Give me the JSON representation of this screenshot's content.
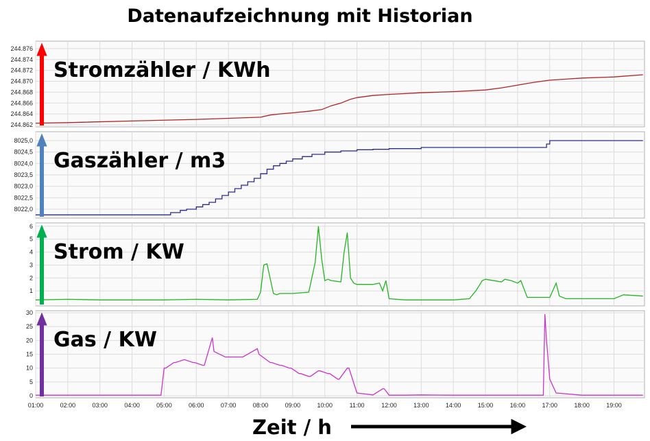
{
  "title": "Datenaufzeichnung mit Historian",
  "x_axis_label": "Zeit / h",
  "chart_data": [
    {
      "type": "line",
      "title": "Stromzähler / KWh",
      "color": "#b22222",
      "arrow_color": "#ff0000",
      "yticks": [
        "244.862",
        "244.864",
        "244.866",
        "244.868",
        "244.870",
        "244.872",
        "244.874",
        "244.876"
      ],
      "ylim": [
        244.862,
        244.877
      ],
      "grid": true,
      "series": [
        {
          "x": [
            1.0,
            2.0,
            4.0,
            6.0,
            7.0,
            8.0,
            8.3,
            8.6,
            9.0,
            9.5,
            9.9,
            10.2,
            10.5,
            10.8,
            11.0,
            11.5,
            12.0,
            13.0,
            14.0,
            15.0,
            15.5,
            16.0,
            16.5,
            17.0,
            17.5,
            18.0,
            19.0,
            19.9
          ],
          "y": [
            244.8623,
            244.8624,
            244.8627,
            244.863,
            244.8632,
            244.8634,
            244.8638,
            244.864,
            244.8642,
            244.8645,
            244.8648,
            244.8655,
            244.866,
            244.8667,
            244.867,
            244.8674,
            244.8676,
            244.8679,
            244.8681,
            244.8684,
            244.8688,
            244.8693,
            244.8698,
            244.8702,
            244.8704,
            244.8706,
            244.8708,
            244.8712
          ]
        }
      ]
    },
    {
      "type": "line",
      "step": true,
      "title": "Gaszähler / m3",
      "color": "#2b2b8f",
      "arrow_color": "#4f81bd",
      "yticks": [
        "8022,0",
        "8022,5",
        "8023,0",
        "8023,5",
        "8024,0",
        "8024,5",
        "8025,0"
      ],
      "ylim": [
        8021.7,
        8025.3
      ],
      "grid": true,
      "series": [
        {
          "x": [
            1.0,
            5.0,
            5.2,
            5.5,
            5.7,
            6.0,
            6.2,
            6.4,
            6.6,
            6.8,
            7.0,
            7.2,
            7.4,
            7.6,
            7.8,
            8.0,
            8.2,
            8.4,
            8.6,
            8.8,
            9.0,
            9.3,
            9.6,
            10.0,
            10.5,
            11.0,
            11.5,
            12.0,
            13.0,
            14.0,
            15.0,
            16.0,
            16.8,
            16.9,
            17.0,
            18.0,
            19.0,
            19.9
          ],
          "y": [
            8021.75,
            8021.75,
            8021.85,
            8021.95,
            8022.0,
            8022.1,
            8022.2,
            8022.3,
            8022.45,
            8022.6,
            8022.75,
            8022.9,
            8023.05,
            8023.2,
            8023.35,
            8023.55,
            8023.75,
            8023.9,
            8024.0,
            8024.1,
            8024.2,
            8024.3,
            8024.4,
            8024.5,
            8024.55,
            8024.6,
            8024.62,
            8024.65,
            8024.7,
            8024.7,
            8024.7,
            8024.7,
            8024.7,
            8024.85,
            8025.0,
            8025.0,
            8025.0,
            8025.0
          ]
        }
      ]
    },
    {
      "type": "line",
      "title": "Strom / KW",
      "color": "#22b522",
      "arrow_color": "#00b050",
      "yticks": [
        "1",
        "2",
        "3",
        "4",
        "5",
        "6"
      ],
      "ylim": [
        0,
        6.1
      ],
      "grid": true,
      "series": [
        {
          "x": [
            1.0,
            2.0,
            3.0,
            4.0,
            5.0,
            6.0,
            7.0,
            7.9,
            8.0,
            8.1,
            8.2,
            8.4,
            8.5,
            8.6,
            9.0,
            9.5,
            9.7,
            9.8,
            9.9,
            10.0,
            10.1,
            10.2,
            10.5,
            10.6,
            10.7,
            10.8,
            10.9,
            11.0,
            11.5,
            11.7,
            11.8,
            11.9,
            12.0,
            12.5,
            13.0,
            14.0,
            14.5,
            14.7,
            14.9,
            15.0,
            15.5,
            15.6,
            15.8,
            16.0,
            16.1,
            16.3,
            17.0,
            17.2,
            17.3,
            17.5,
            18.0,
            19.0,
            19.3,
            19.9
          ],
          "y": [
            0.3,
            0.35,
            0.3,
            0.3,
            0.3,
            0.35,
            0.3,
            0.35,
            0.9,
            3.0,
            3.1,
            0.8,
            0.7,
            0.8,
            0.8,
            0.9,
            3.2,
            6.0,
            3.5,
            1.8,
            1.9,
            1.8,
            1.7,
            4.0,
            5.5,
            2.0,
            1.6,
            1.5,
            1.5,
            1.6,
            1.0,
            1.8,
            0.4,
            0.3,
            0.3,
            0.3,
            0.4,
            1.0,
            1.8,
            1.9,
            1.7,
            1.9,
            1.8,
            1.6,
            1.8,
            0.5,
            0.5,
            1.6,
            0.6,
            0.4,
            0.4,
            0.4,
            0.7,
            0.6
          ]
        }
      ]
    },
    {
      "type": "line",
      "title": "Gas / KW",
      "color": "#cc33cc",
      "arrow_color": "#7030a0",
      "yticks": [
        "0",
        "5",
        "10",
        "15",
        "20",
        "25",
        "30"
      ],
      "ylim": [
        0,
        30
      ],
      "grid": true,
      "xticks": [
        "01:00",
        "02:00",
        "03:00",
        "04:00",
        "05:00",
        "06:00",
        "07:00",
        "08:00",
        "09:00",
        "10:00",
        "11:00",
        "12:00",
        "13:00",
        "14:00",
        "15:00",
        "16:00",
        "17:00",
        "18:00",
        "19:00"
      ],
      "xlim": [
        1.0,
        19.95
      ],
      "series": [
        {
          "x": [
            1.0,
            4.9,
            5.0,
            5.05,
            5.3,
            5.35,
            5.6,
            5.65,
            5.9,
            5.95,
            6.2,
            6.25,
            6.5,
            6.55,
            6.9,
            6.95,
            7.4,
            7.45,
            7.9,
            7.95,
            8.3,
            8.35,
            8.6,
            8.65,
            8.9,
            8.95,
            9.2,
            9.25,
            9.5,
            9.55,
            9.8,
            9.85,
            10.1,
            10.15,
            10.4,
            10.45,
            10.7,
            10.75,
            11.0,
            11.5,
            11.8,
            11.85,
            12.0,
            12.5,
            13.0,
            14.0,
            15.0,
            16.0,
            16.8,
            16.85,
            16.9,
            17.0,
            17.2,
            18.0,
            19.0,
            19.9
          ],
          "y": [
            0.2,
            0.2,
            10,
            10,
            12,
            12,
            13,
            13,
            12,
            12,
            11,
            11,
            21,
            16,
            14,
            14,
            14,
            14,
            17,
            15,
            12,
            12,
            11,
            11,
            10,
            10,
            8,
            8,
            7,
            7,
            9,
            9,
            8,
            8,
            6,
            6,
            10,
            10,
            1,
            0.3,
            2.5,
            2.5,
            0.2,
            0.2,
            0.3,
            0.2,
            0.2,
            0.2,
            0.2,
            29.5,
            20,
            6,
            1,
            0.2,
            0.2,
            0.2
          ]
        }
      ]
    }
  ]
}
